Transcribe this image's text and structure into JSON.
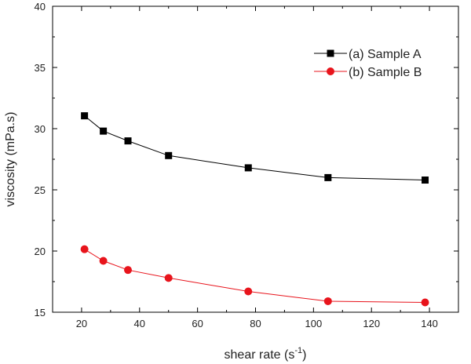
{
  "chart_data": {
    "type": "line",
    "title": "",
    "xlabel": "shear rate (s",
    "xlabel_superscript": "-1",
    "xlabel_close": ")",
    "ylabel": "viscosity (mPa.s)",
    "xlim": [
      10,
      150
    ],
    "ylim": [
      15,
      40
    ],
    "xticks": [
      20,
      40,
      60,
      80,
      100,
      120,
      140
    ],
    "yticks": [
      15,
      20,
      25,
      30,
      35,
      40
    ],
    "grid": false,
    "legend_position": "top-right",
    "series": [
      {
        "name": "(a) Sample A",
        "color": "#000000",
        "marker": "square",
        "x": [
          21,
          27.5,
          36,
          50,
          77.5,
          105,
          138.5
        ],
        "y": [
          31.05,
          29.8,
          29.0,
          27.8,
          26.8,
          26.0,
          25.8
        ]
      },
      {
        "name": "(b) Sample B",
        "color": "#e8141c",
        "marker": "circle",
        "x": [
          21,
          27.5,
          36,
          50,
          77.5,
          105,
          138.5
        ],
        "y": [
          20.15,
          19.2,
          18.45,
          17.8,
          16.7,
          15.9,
          15.8
        ]
      }
    ]
  }
}
